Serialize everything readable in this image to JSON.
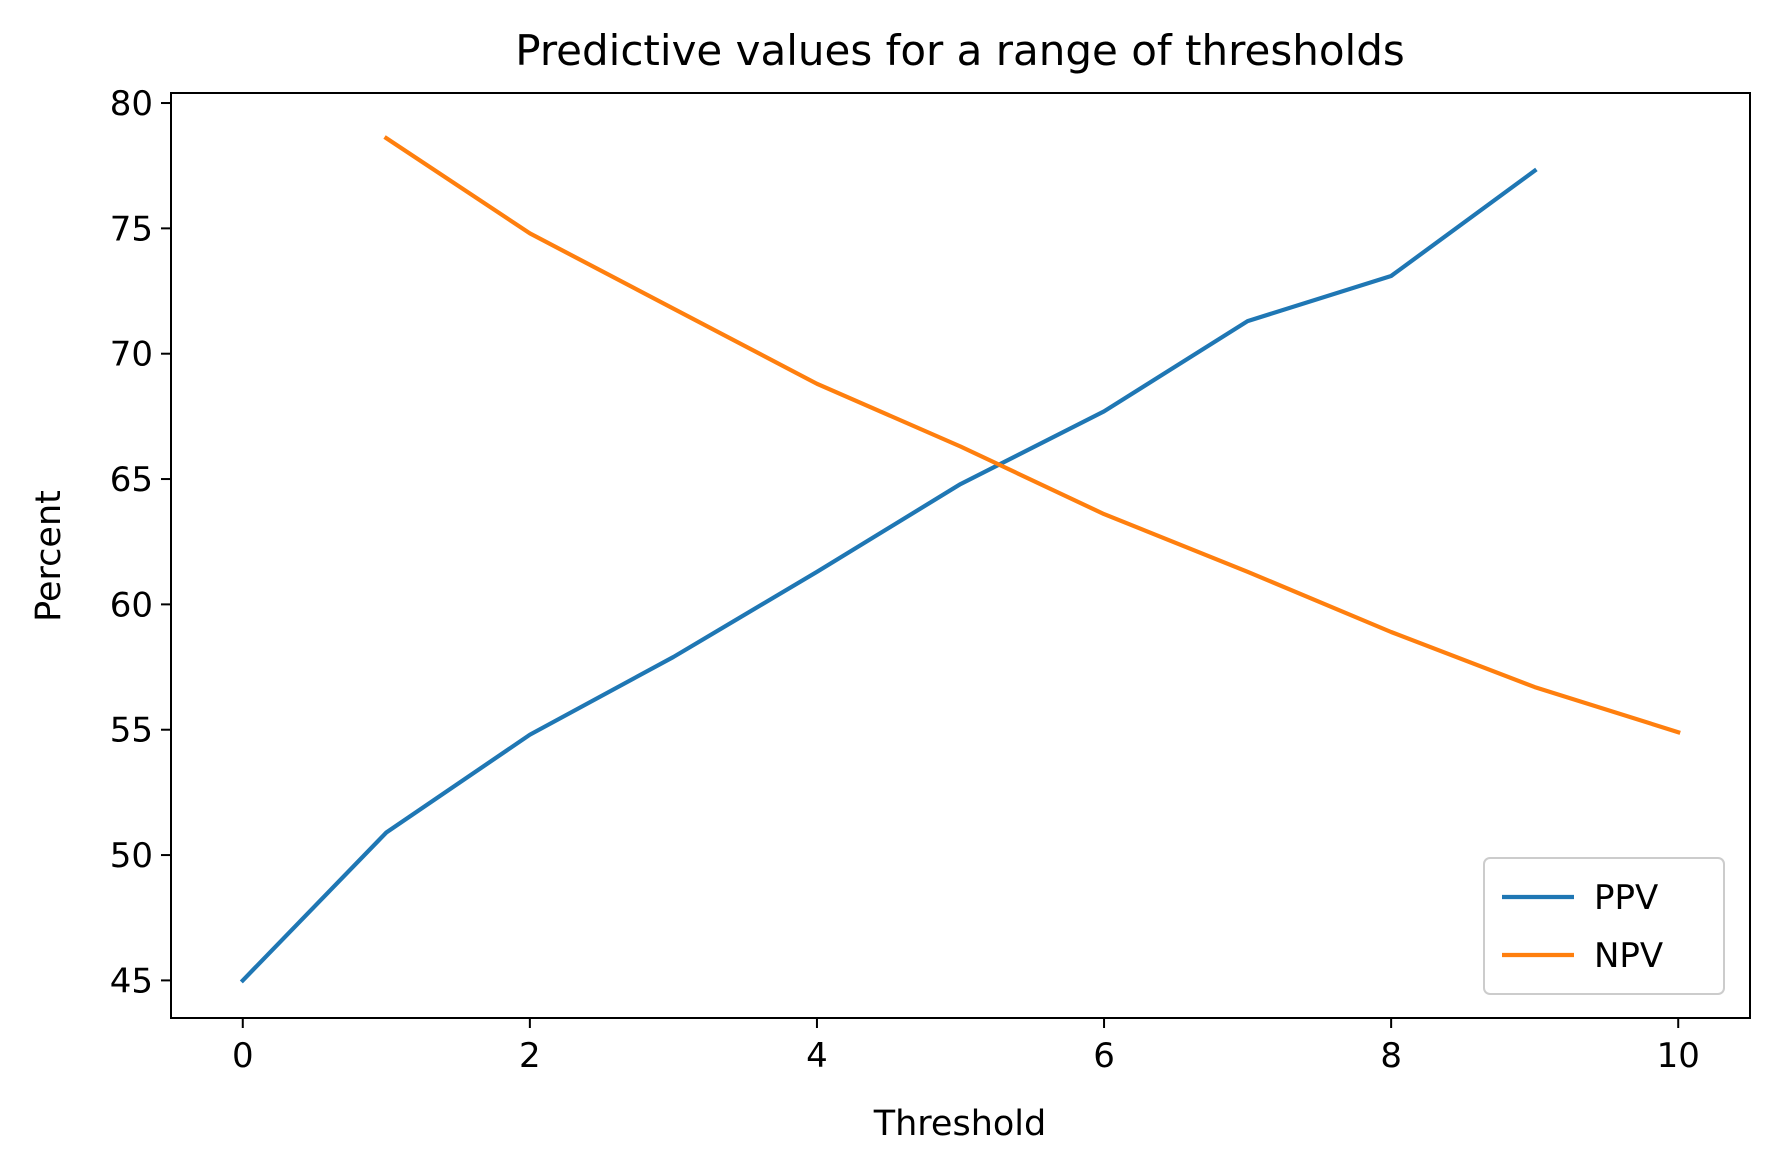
{
  "chart_data": {
    "type": "line",
    "title": "Predictive values for a range of thresholds",
    "xlabel": "Threshold",
    "ylabel": "Percent",
    "xlim": [
      -0.5,
      10.5
    ],
    "ylim": [
      43.5,
      80.4
    ],
    "xticks": [
      0,
      2,
      4,
      6,
      8,
      10
    ],
    "yticks": [
      45,
      50,
      55,
      60,
      65,
      70,
      75,
      80
    ],
    "grid": false,
    "legend_position": "lower right",
    "series": [
      {
        "name": "PPV",
        "color": "#1f77b4",
        "x": [
          0,
          1,
          2,
          3,
          4,
          5,
          6,
          7,
          8,
          9
        ],
        "y": [
          45.0,
          50.9,
          54.8,
          57.9,
          61.3,
          64.8,
          67.7,
          71.3,
          73.1,
          77.3
        ]
      },
      {
        "name": "NPV",
        "color": "#ff7f0e",
        "x": [
          1,
          2,
          3,
          4,
          5,
          6,
          7,
          8,
          9,
          10
        ],
        "y": [
          78.6,
          74.8,
          71.8,
          68.8,
          66.3,
          63.6,
          61.3,
          58.9,
          56.7,
          54.9
        ]
      }
    ]
  }
}
